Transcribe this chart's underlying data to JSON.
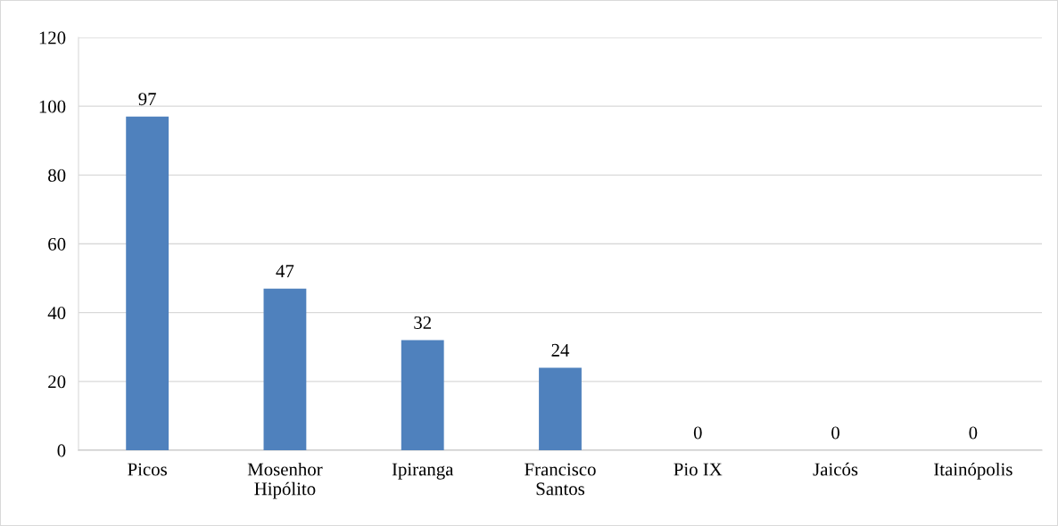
{
  "chart_data": {
    "type": "bar",
    "categories": [
      "Picos",
      "Mosenhor\nHipólito",
      "Ipiranga",
      "Francisco\nSantos",
      "Pio IX",
      "Jaicós",
      "Itainópolis"
    ],
    "values": [
      97,
      47,
      32,
      24,
      0,
      0,
      0
    ],
    "color": "#4f81bd",
    "ylim": [
      0,
      120
    ],
    "yticks": [
      0,
      20,
      40,
      60,
      80,
      100,
      120
    ],
    "grid": "y",
    "data_labels": true,
    "legend": false
  }
}
